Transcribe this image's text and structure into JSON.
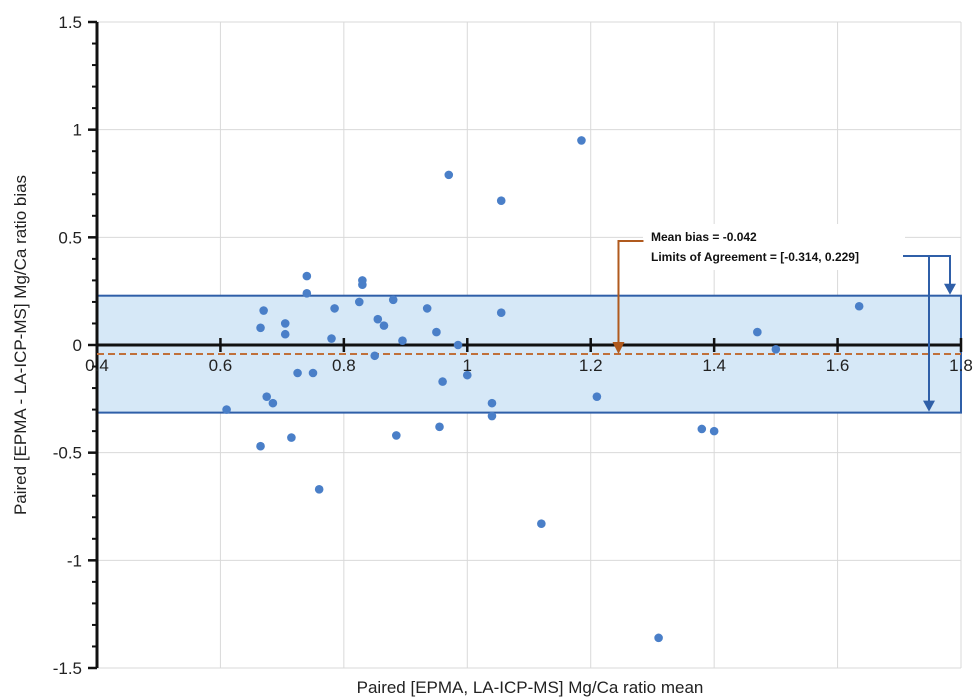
{
  "chart_data": {
    "type": "scatter",
    "xlabel": "Paired [EPMA, LA-ICP-MS] Mg/Ca ratio mean",
    "ylabel": "Paired [EPMA - LA-ICP-MS] Mg/Ca ratio bias",
    "xlim": [
      0.4,
      1.8
    ],
    "ylim": [
      -1.5,
      1.5
    ],
    "x_ticks": [
      0.4,
      0.6,
      0.8,
      1,
      1.2,
      1.4,
      1.6,
      1.8
    ],
    "y_ticks": [
      1.5,
      1,
      0.5,
      0,
      -0.5,
      -1,
      -1.5
    ],
    "x_tick_labels": [
      "0.4",
      "0.6",
      "0.8",
      "1",
      "1.2",
      "1.4",
      "1.6",
      "1.8"
    ],
    "y_tick_labels": [
      "1.5",
      "1",
      "0.5",
      "0",
      "-0.5",
      "-1",
      "-1.5"
    ],
    "grid": true,
    "mean_bias": -0.042,
    "limits_of_agreement": [
      -0.314,
      0.229
    ],
    "annotations": {
      "mean_bias_text": "Mean bias = -0.042",
      "loa_text": "Limits of Agreement = [-0.314, 0.229]"
    },
    "colors": {
      "points": "#4a7fc8",
      "band_fill": "#d6e8f7",
      "band_border": "#2f5fa8",
      "mean_line": "#c0703a",
      "mean_arrow": "#b05a1e",
      "loa_arrow": "#2f5fa8",
      "axis": "#111111",
      "grid": "#d9d9d9"
    },
    "points": [
      {
        "x": 0.61,
        "y": -0.3
      },
      {
        "x": 0.665,
        "y": 0.08
      },
      {
        "x": 0.665,
        "y": -0.47
      },
      {
        "x": 0.67,
        "y": 0.16
      },
      {
        "x": 0.675,
        "y": -0.24
      },
      {
        "x": 0.685,
        "y": -0.27
      },
      {
        "x": 0.705,
        "y": 0.1
      },
      {
        "x": 0.705,
        "y": 0.05
      },
      {
        "x": 0.715,
        "y": -0.43
      },
      {
        "x": 0.725,
        "y": -0.13
      },
      {
        "x": 0.74,
        "y": 0.24
      },
      {
        "x": 0.74,
        "y": 0.32
      },
      {
        "x": 0.75,
        "y": -0.13
      },
      {
        "x": 0.76,
        "y": -0.67
      },
      {
        "x": 0.78,
        "y": 0.03
      },
      {
        "x": 0.785,
        "y": 0.17
      },
      {
        "x": 0.825,
        "y": 0.2
      },
      {
        "x": 0.83,
        "y": 0.28
      },
      {
        "x": 0.83,
        "y": 0.3
      },
      {
        "x": 0.85,
        "y": -0.05
      },
      {
        "x": 0.855,
        "y": 0.12
      },
      {
        "x": 0.865,
        "y": 0.09
      },
      {
        "x": 0.88,
        "y": 0.21
      },
      {
        "x": 0.885,
        "y": -0.42
      },
      {
        "x": 0.895,
        "y": 0.02
      },
      {
        "x": 0.935,
        "y": 0.17
      },
      {
        "x": 0.95,
        "y": 0.06
      },
      {
        "x": 0.955,
        "y": -0.38
      },
      {
        "x": 0.96,
        "y": -0.17
      },
      {
        "x": 0.97,
        "y": 0.79
      },
      {
        "x": 0.985,
        "y": 0.0
      },
      {
        "x": 1.0,
        "y": -0.14
      },
      {
        "x": 1.04,
        "y": -0.27
      },
      {
        "x": 1.04,
        "y": -0.33
      },
      {
        "x": 1.055,
        "y": 0.15
      },
      {
        "x": 1.055,
        "y": 0.67
      },
      {
        "x": 1.12,
        "y": -0.83
      },
      {
        "x": 1.185,
        "y": 0.95
      },
      {
        "x": 1.21,
        "y": -0.24
      },
      {
        "x": 1.31,
        "y": -1.36
      },
      {
        "x": 1.38,
        "y": -0.39
      },
      {
        "x": 1.4,
        "y": -0.4
      },
      {
        "x": 1.47,
        "y": 0.06
      },
      {
        "x": 1.5,
        "y": -0.02
      },
      {
        "x": 1.635,
        "y": 0.18
      }
    ]
  }
}
